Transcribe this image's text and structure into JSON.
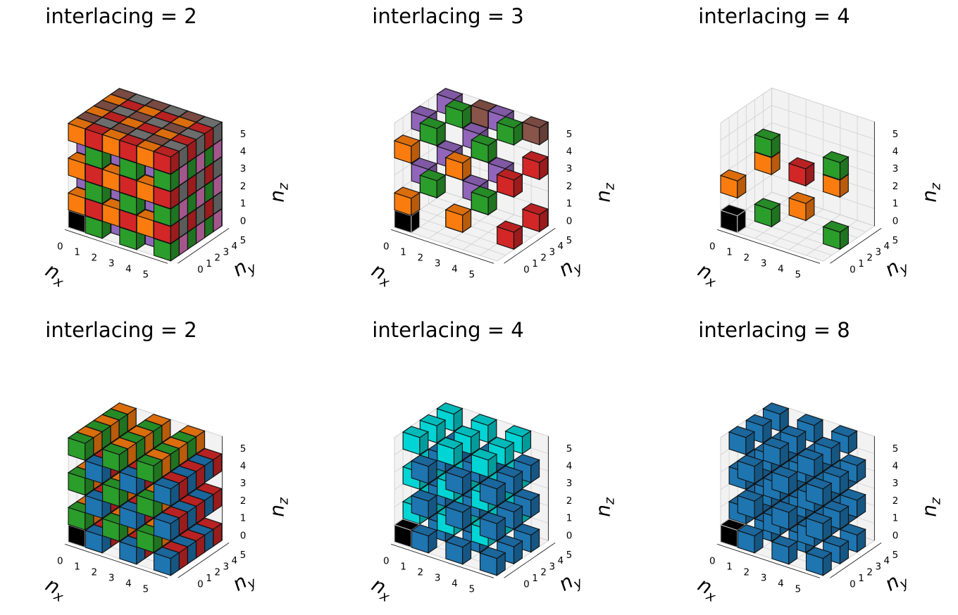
{
  "chart_data": [
    {
      "type": "voxel",
      "title": "interlacing = 2",
      "axes": {
        "x": "n",
        "x_sub": "x",
        "y": "n",
        "y_sub": "y",
        "z": "n",
        "z_sub": "z"
      },
      "ticks": [
        "0",
        "1",
        "2",
        "3",
        "4",
        "5"
      ],
      "xlim": [
        0,
        6
      ],
      "ylim": [
        0,
        6
      ],
      "zlim": [
        0,
        6
      ],
      "voxel_size": 1,
      "reference_voxel": {
        "x": 0,
        "y": 0,
        "z": 0,
        "color": "#000000"
      },
      "groups": [
        {
          "color": "#ff7f0e",
          "step": [
            2,
            2,
            2
          ],
          "offset": [
            0,
            0,
            1
          ]
        },
        {
          "color": "#2ca02c",
          "step": [
            2,
            2,
            2
          ],
          "offset": [
            1,
            0,
            0
          ]
        },
        {
          "color": "#d62728",
          "step": [
            2,
            2,
            2
          ],
          "offset": [
            1,
            0,
            1
          ]
        },
        {
          "color": "#9467bd",
          "step": [
            2,
            2,
            2
          ],
          "offset": [
            0,
            1,
            0
          ]
        },
        {
          "color": "#8c564b",
          "step": [
            2,
            2,
            2
          ],
          "offset": [
            0,
            1,
            1
          ]
        },
        {
          "color": "#e377c2",
          "step": [
            2,
            2,
            2
          ],
          "offset": [
            1,
            1,
            0
          ]
        },
        {
          "color": "#7f7f7f",
          "step": [
            2,
            2,
            2
          ],
          "offset": [
            1,
            1,
            1
          ]
        }
      ]
    },
    {
      "type": "voxel",
      "title": "interlacing = 3",
      "axes": {
        "x": "n",
        "x_sub": "x",
        "y": "n",
        "y_sub": "y",
        "z": "n",
        "z_sub": "z"
      },
      "ticks": [
        "0",
        "1",
        "2",
        "3",
        "4",
        "5"
      ],
      "xlim": [
        0,
        6
      ],
      "ylim": [
        0,
        6
      ],
      "zlim": [
        0,
        6
      ],
      "voxel_size": 1,
      "reference_voxel": {
        "x": 0,
        "y": 0,
        "z": 0,
        "color": "#000000"
      },
      "groups": [
        {
          "color": "#ff7f0e",
          "step": [
            3,
            3,
            3
          ],
          "offset": [
            0,
            0,
            1
          ]
        },
        {
          "color": "#2ca02c",
          "step": [
            3,
            3,
            3
          ],
          "offset": [
            1,
            1,
            2
          ]
        },
        {
          "color": "#d62728",
          "step": [
            3,
            3,
            3
          ],
          "offset": [
            2,
            2,
            0
          ]
        },
        {
          "color": "#9467bd",
          "step": [
            3,
            3,
            3
          ],
          "offset": [
            0,
            2,
            2
          ]
        },
        {
          "color": "#8c564b",
          "step": [
            3,
            3,
            3
          ],
          "offset": [
            2,
            5,
            5
          ]
        }
      ]
    },
    {
      "type": "voxel",
      "title": "interlacing = 4",
      "axes": {
        "x": "n",
        "x_sub": "x",
        "y": "n",
        "y_sub": "y",
        "z": "n",
        "z_sub": "z"
      },
      "ticks": [
        "0",
        "1",
        "2",
        "3",
        "4",
        "5"
      ],
      "xlim": [
        0,
        6
      ],
      "ylim": [
        0,
        6
      ],
      "zlim": [
        0,
        6
      ],
      "voxel_size": 1,
      "reference_voxel": {
        "x": 0,
        "y": 0,
        "z": 0,
        "color": "#000000"
      },
      "groups": [
        {
          "color": "#ff7f0e",
          "step": [
            4,
            4,
            4
          ],
          "offset": [
            0,
            0,
            2
          ]
        },
        {
          "color": "#2ca02c",
          "step": [
            4,
            4,
            4
          ],
          "offset": [
            1,
            2,
            0
          ]
        },
        {
          "color": "#d62728",
          "step": [
            4,
            4,
            4
          ],
          "offset": [
            2,
            4,
            2
          ]
        }
      ]
    },
    {
      "type": "voxel",
      "title": "interlacing = 2",
      "axes": {
        "x": "n",
        "x_sub": "x",
        "y": "n",
        "y_sub": "y",
        "z": "n",
        "z_sub": "z"
      },
      "ticks": [
        "0",
        "1",
        "2",
        "3",
        "4",
        "5"
      ],
      "xlim": [
        0,
        6
      ],
      "ylim": [
        0,
        6
      ],
      "zlim": [
        0,
        6
      ],
      "voxel_size": 1,
      "reference_voxel": {
        "x": 0,
        "y": 0,
        "z": 0,
        "color": "#000000"
      },
      "groups": [
        {
          "color": "#1f77b4",
          "step": [
            2,
            2,
            2
          ],
          "offset": [
            1,
            0,
            0
          ]
        },
        {
          "color": "#2ca02c",
          "step": [
            2,
            2,
            2
          ],
          "offset": [
            0,
            0,
            1
          ]
        },
        {
          "color": "#d62728",
          "step": [
            2,
            2,
            2
          ],
          "offset": [
            1,
            1,
            0
          ]
        },
        {
          "color": "#ff7f0e",
          "step": [
            2,
            2,
            2
          ],
          "offset": [
            0,
            1,
            1
          ]
        }
      ]
    },
    {
      "type": "voxel",
      "title": "interlacing = 4",
      "axes": {
        "x": "n",
        "x_sub": "x",
        "y": "n",
        "y_sub": "y",
        "z": "n",
        "z_sub": "z"
      },
      "ticks": [
        "0",
        "1",
        "2",
        "3",
        "4",
        "5"
      ],
      "xlim": [
        0,
        6
      ],
      "ylim": [
        0,
        6
      ],
      "zlim": [
        0,
        6
      ],
      "voxel_size": 1,
      "reference_voxel": {
        "x": 0,
        "y": 0,
        "z": 0,
        "color": "#000000"
      },
      "groups": [
        {
          "color": "#1f77b4",
          "step": [
            2,
            2,
            2
          ],
          "offset": [
            1,
            0,
            0
          ]
        },
        {
          "color": "#00d8d8",
          "step": [
            2,
            2,
            2
          ],
          "offset": [
            0,
            1,
            1
          ]
        }
      ]
    },
    {
      "type": "voxel",
      "title": "interlacing = 8",
      "axes": {
        "x": "n",
        "x_sub": "x",
        "y": "n",
        "y_sub": "y",
        "z": "n",
        "z_sub": "z"
      },
      "ticks": [
        "0",
        "1",
        "2",
        "3",
        "4",
        "5"
      ],
      "xlim": [
        0,
        6
      ],
      "ylim": [
        0,
        6
      ],
      "zlim": [
        0,
        6
      ],
      "voxel_size": 1,
      "reference_voxel": {
        "x": 0,
        "y": 0,
        "z": 0,
        "color": "#000000"
      },
      "groups": [
        {
          "color": "#1f77b4",
          "step": [
            2,
            2,
            2
          ],
          "offset": [
            1,
            0,
            0
          ]
        },
        {
          "color": "#1f77b4",
          "step": [
            2,
            2,
            2
          ],
          "offset": [
            0,
            1,
            1
          ]
        }
      ]
    }
  ]
}
